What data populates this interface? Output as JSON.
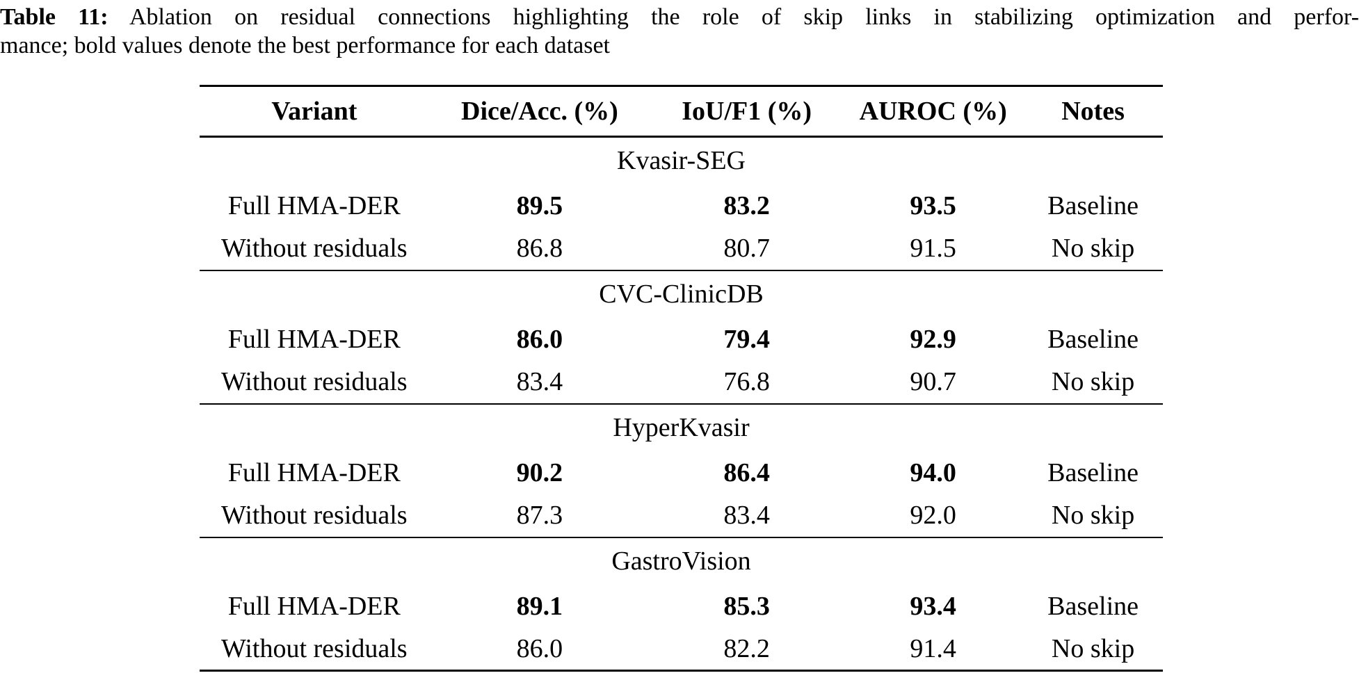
{
  "caption": {
    "label": "Table 11:",
    "line1": "Ablation on residual connections highlighting the role of skip links in stabilizing optimization and perfor-",
    "line2": "mance; bold values denote the best performance for each dataset"
  },
  "table": {
    "columns": [
      "Variant",
      "Dice/Acc. (%)",
      "IoU/F1 (%)",
      "AUROC (%)",
      "Notes"
    ],
    "sections": [
      {
        "dataset": "Kvasir-SEG",
        "rows": [
          {
            "variant": "Full HMA-DER",
            "dice_acc": "89.5",
            "iou_f1": "83.2",
            "auroc": "93.5",
            "notes": "Baseline",
            "bold_values": true
          },
          {
            "variant": "Without residuals",
            "dice_acc": "86.8",
            "iou_f1": "80.7",
            "auroc": "91.5",
            "notes": "No skip",
            "bold_values": false
          }
        ]
      },
      {
        "dataset": "CVC-ClinicDB",
        "rows": [
          {
            "variant": "Full HMA-DER",
            "dice_acc": "86.0",
            "iou_f1": "79.4",
            "auroc": "92.9",
            "notes": "Baseline",
            "bold_values": true
          },
          {
            "variant": "Without residuals",
            "dice_acc": "83.4",
            "iou_f1": "76.8",
            "auroc": "90.7",
            "notes": "No skip",
            "bold_values": false
          }
        ]
      },
      {
        "dataset": "HyperKvasir",
        "rows": [
          {
            "variant": "Full HMA-DER",
            "dice_acc": "90.2",
            "iou_f1": "86.4",
            "auroc": "94.0",
            "notes": "Baseline",
            "bold_values": true
          },
          {
            "variant": "Without residuals",
            "dice_acc": "87.3",
            "iou_f1": "83.4",
            "auroc": "92.0",
            "notes": "No skip",
            "bold_values": false
          }
        ]
      },
      {
        "dataset": "GastroVision",
        "rows": [
          {
            "variant": "Full HMA-DER",
            "dice_acc": "89.1",
            "iou_f1": "85.3",
            "auroc": "93.4",
            "notes": "Baseline",
            "bold_values": true
          },
          {
            "variant": "Without residuals",
            "dice_acc": "86.0",
            "iou_f1": "82.2",
            "auroc": "91.4",
            "notes": "No skip",
            "bold_values": false
          }
        ]
      }
    ]
  },
  "colors": {
    "text": "#000000",
    "background": "#ffffff",
    "rule": "#000000"
  }
}
